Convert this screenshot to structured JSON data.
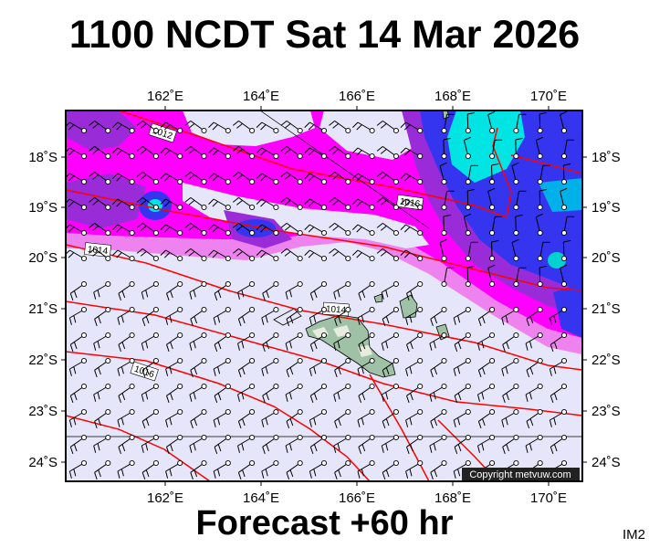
{
  "header": {
    "title": "1100 NCDT Sat 14 Mar 2026"
  },
  "footer": {
    "forecast": "Forecast +60 hr",
    "corner_id": "IM2"
  },
  "map": {
    "copyright": "Copyright metvuw.com",
    "lon_ticks": [
      "162˚E",
      "164˚E",
      "166˚E",
      "168˚E",
      "170˚E"
    ],
    "lat_ticks": [
      "18˚S",
      "19˚S",
      "20˚S",
      "21˚S",
      "22˚S",
      "23˚S",
      "24˚S"
    ],
    "isobar_labels": [
      "1012",
      "1016",
      "1014",
      "1014",
      "1016"
    ],
    "colors": {
      "background": "#e6e6fa",
      "light_magenta": "#ee82ee",
      "magenta": "#ff00ff",
      "purple": "#9a2bd8",
      "blue": "#3535f0",
      "cyan": "#00e4e4",
      "isobar": "#ff0000",
      "coast": "#000000"
    }
  }
}
